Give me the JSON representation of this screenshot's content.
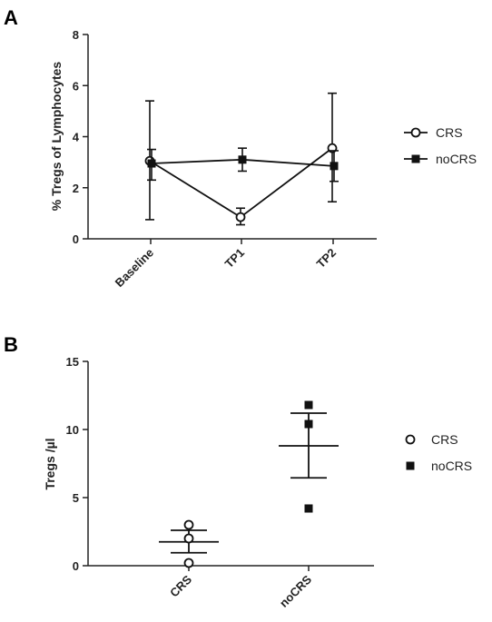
{
  "chart_data": [
    {
      "panel": "A",
      "type": "line",
      "ylabel": "% Tregs of Lymphocytes",
      "categories": [
        "Baseline",
        "TP1",
        "TP2"
      ],
      "ylim": [
        0,
        8
      ],
      "yticks": [
        "0",
        "2",
        "4",
        "6",
        "8"
      ],
      "series": [
        {
          "name": "CRS",
          "marker": "open-circle",
          "values": [
            3.05,
            0.85,
            3.55
          ],
          "err_low": [
            0.75,
            0.55,
            1.45
          ],
          "err_high": [
            5.4,
            1.2,
            5.7
          ]
        },
        {
          "name": "noCRS",
          "marker": "filled-square",
          "values": [
            2.95,
            3.1,
            2.85
          ],
          "err_low": [
            2.3,
            2.65,
            2.25
          ],
          "err_high": [
            3.5,
            3.55,
            3.45
          ]
        }
      ],
      "legend_position": "right"
    },
    {
      "panel": "B",
      "type": "scatter",
      "ylabel": "Tregs /µl",
      "categories": [
        "CRS",
        "noCRS"
      ],
      "ylim": [
        0,
        15
      ],
      "yticks": [
        "0",
        "5",
        "10",
        "15"
      ],
      "series": [
        {
          "name": "CRS",
          "marker": "open-circle",
          "points": [
            3.0,
            2.0,
            0.2
          ],
          "mean": 1.75,
          "sem_low": 0.95,
          "sem_high": 2.6
        },
        {
          "name": "noCRS",
          "marker": "filled-square",
          "points": [
            11.8,
            10.4,
            4.2
          ],
          "mean": 8.8,
          "sem_low": 6.45,
          "sem_high": 11.2
        }
      ],
      "legend_position": "right"
    }
  ]
}
